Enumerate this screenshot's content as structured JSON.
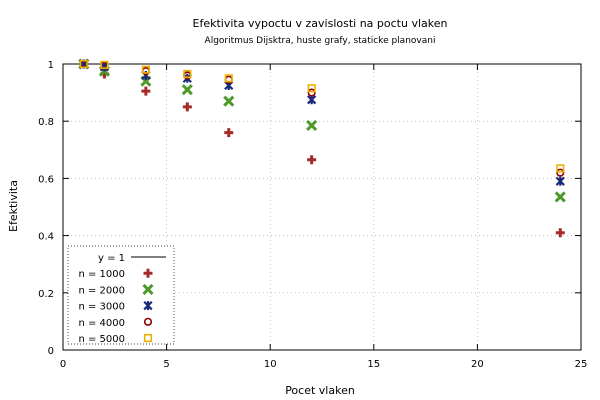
{
  "chart_data": {
    "type": "scatter",
    "title": "Efektivita vypoctu v zavislosti na poctu vlaken",
    "subtitle": "Algoritmus Dijsktra, huste grafy, staticke planovani",
    "xlabel": "Pocet vlaken",
    "ylabel": "Efektivita",
    "xlim": [
      0,
      25
    ],
    "ylim": [
      0,
      1
    ],
    "xticks": [
      0,
      5,
      10,
      15,
      20,
      25
    ],
    "yticks": [
      0,
      0.2,
      0.4,
      0.6,
      0.8,
      1
    ],
    "grid": true,
    "legend_position": "bottom-left",
    "reference_line": {
      "name": "y = 1",
      "value": 1,
      "color": "#000000"
    },
    "series": [
      {
        "name": "n = 1000",
        "marker": "plus",
        "color": "#a52a2a",
        "x": [
          1,
          2,
          4,
          6,
          8,
          12,
          24
        ],
        "y": [
          1.0,
          0.965,
          0.905,
          0.85,
          0.76,
          0.665,
          0.41
        ]
      },
      {
        "name": "n = 2000",
        "marker": "cross",
        "color": "#4d9a2a",
        "x": [
          1,
          2,
          4,
          6,
          8,
          12,
          24
        ],
        "y": [
          1.0,
          0.975,
          0.94,
          0.91,
          0.87,
          0.785,
          0.535
        ]
      },
      {
        "name": "n = 3000",
        "marker": "star",
        "color": "#1a2a7a",
        "x": [
          1,
          2,
          4,
          6,
          8,
          12,
          24
        ],
        "y": [
          1.0,
          0.99,
          0.96,
          0.95,
          0.925,
          0.875,
          0.59
        ]
      },
      {
        "name": "n = 4000",
        "marker": "circle",
        "color": "#8b0000",
        "x": [
          1,
          2,
          4,
          6,
          8,
          12,
          24
        ],
        "y": [
          1.0,
          0.995,
          0.975,
          0.96,
          0.945,
          0.9,
          0.62
        ]
      },
      {
        "name": "n = 5000",
        "marker": "square",
        "color": "#f0b000",
        "x": [
          1,
          2,
          4,
          6,
          8,
          12,
          24
        ],
        "y": [
          1.0,
          0.997,
          0.98,
          0.965,
          0.95,
          0.915,
          0.635
        ]
      }
    ]
  }
}
